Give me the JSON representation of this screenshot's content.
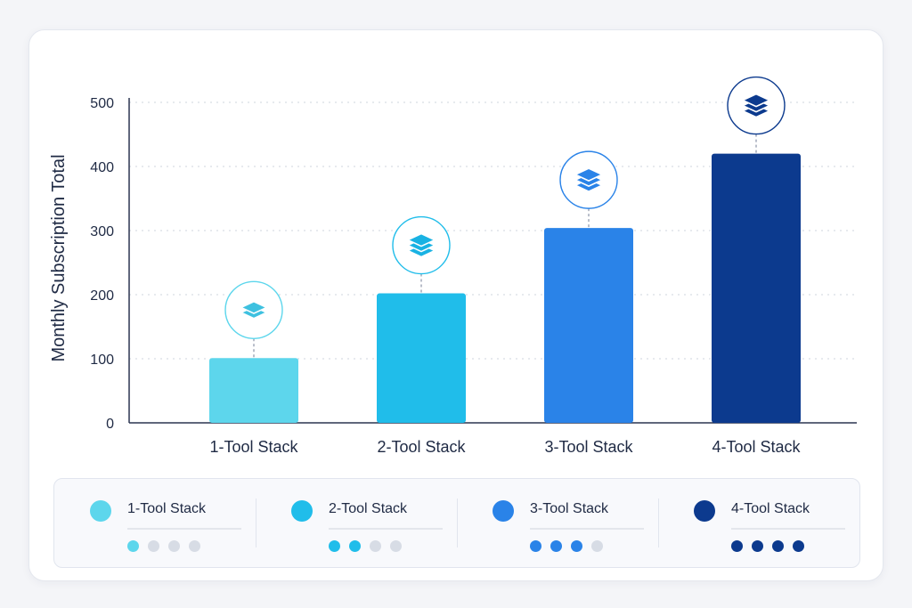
{
  "chart_data": {
    "type": "bar",
    "title": "",
    "xlabel": "",
    "ylabel": "Monthly Subscription Total",
    "ylim": [
      0,
      500
    ],
    "yticks": [
      0,
      100,
      200,
      300,
      400,
      500
    ],
    "categories": [
      "1-Tool Stack",
      "2-Tool Stack",
      "3-Tool Stack",
      "4-Tool Stack"
    ],
    "values": [
      101,
      202,
      304,
      420
    ],
    "colors": [
      "#5dd6ec",
      "#20bdea",
      "#2a83e8",
      "#0c3a8e"
    ],
    "grid": true,
    "bar_icon": "stack-layers-icon",
    "legend_placement": "bottom"
  },
  "legend": {
    "items": [
      {
        "label": "1-Tool Stack",
        "color": "#5dd6ec",
        "level": 1,
        "of": 4
      },
      {
        "label": "2-Tool Stack",
        "color": "#20bdea",
        "level": 2,
        "of": 4
      },
      {
        "label": "3-Tool Stack",
        "color": "#2a83e8",
        "level": 3,
        "of": 4
      },
      {
        "label": "4-Tool Stack",
        "color": "#0c3a8e",
        "level": 4,
        "of": 4
      }
    ]
  }
}
